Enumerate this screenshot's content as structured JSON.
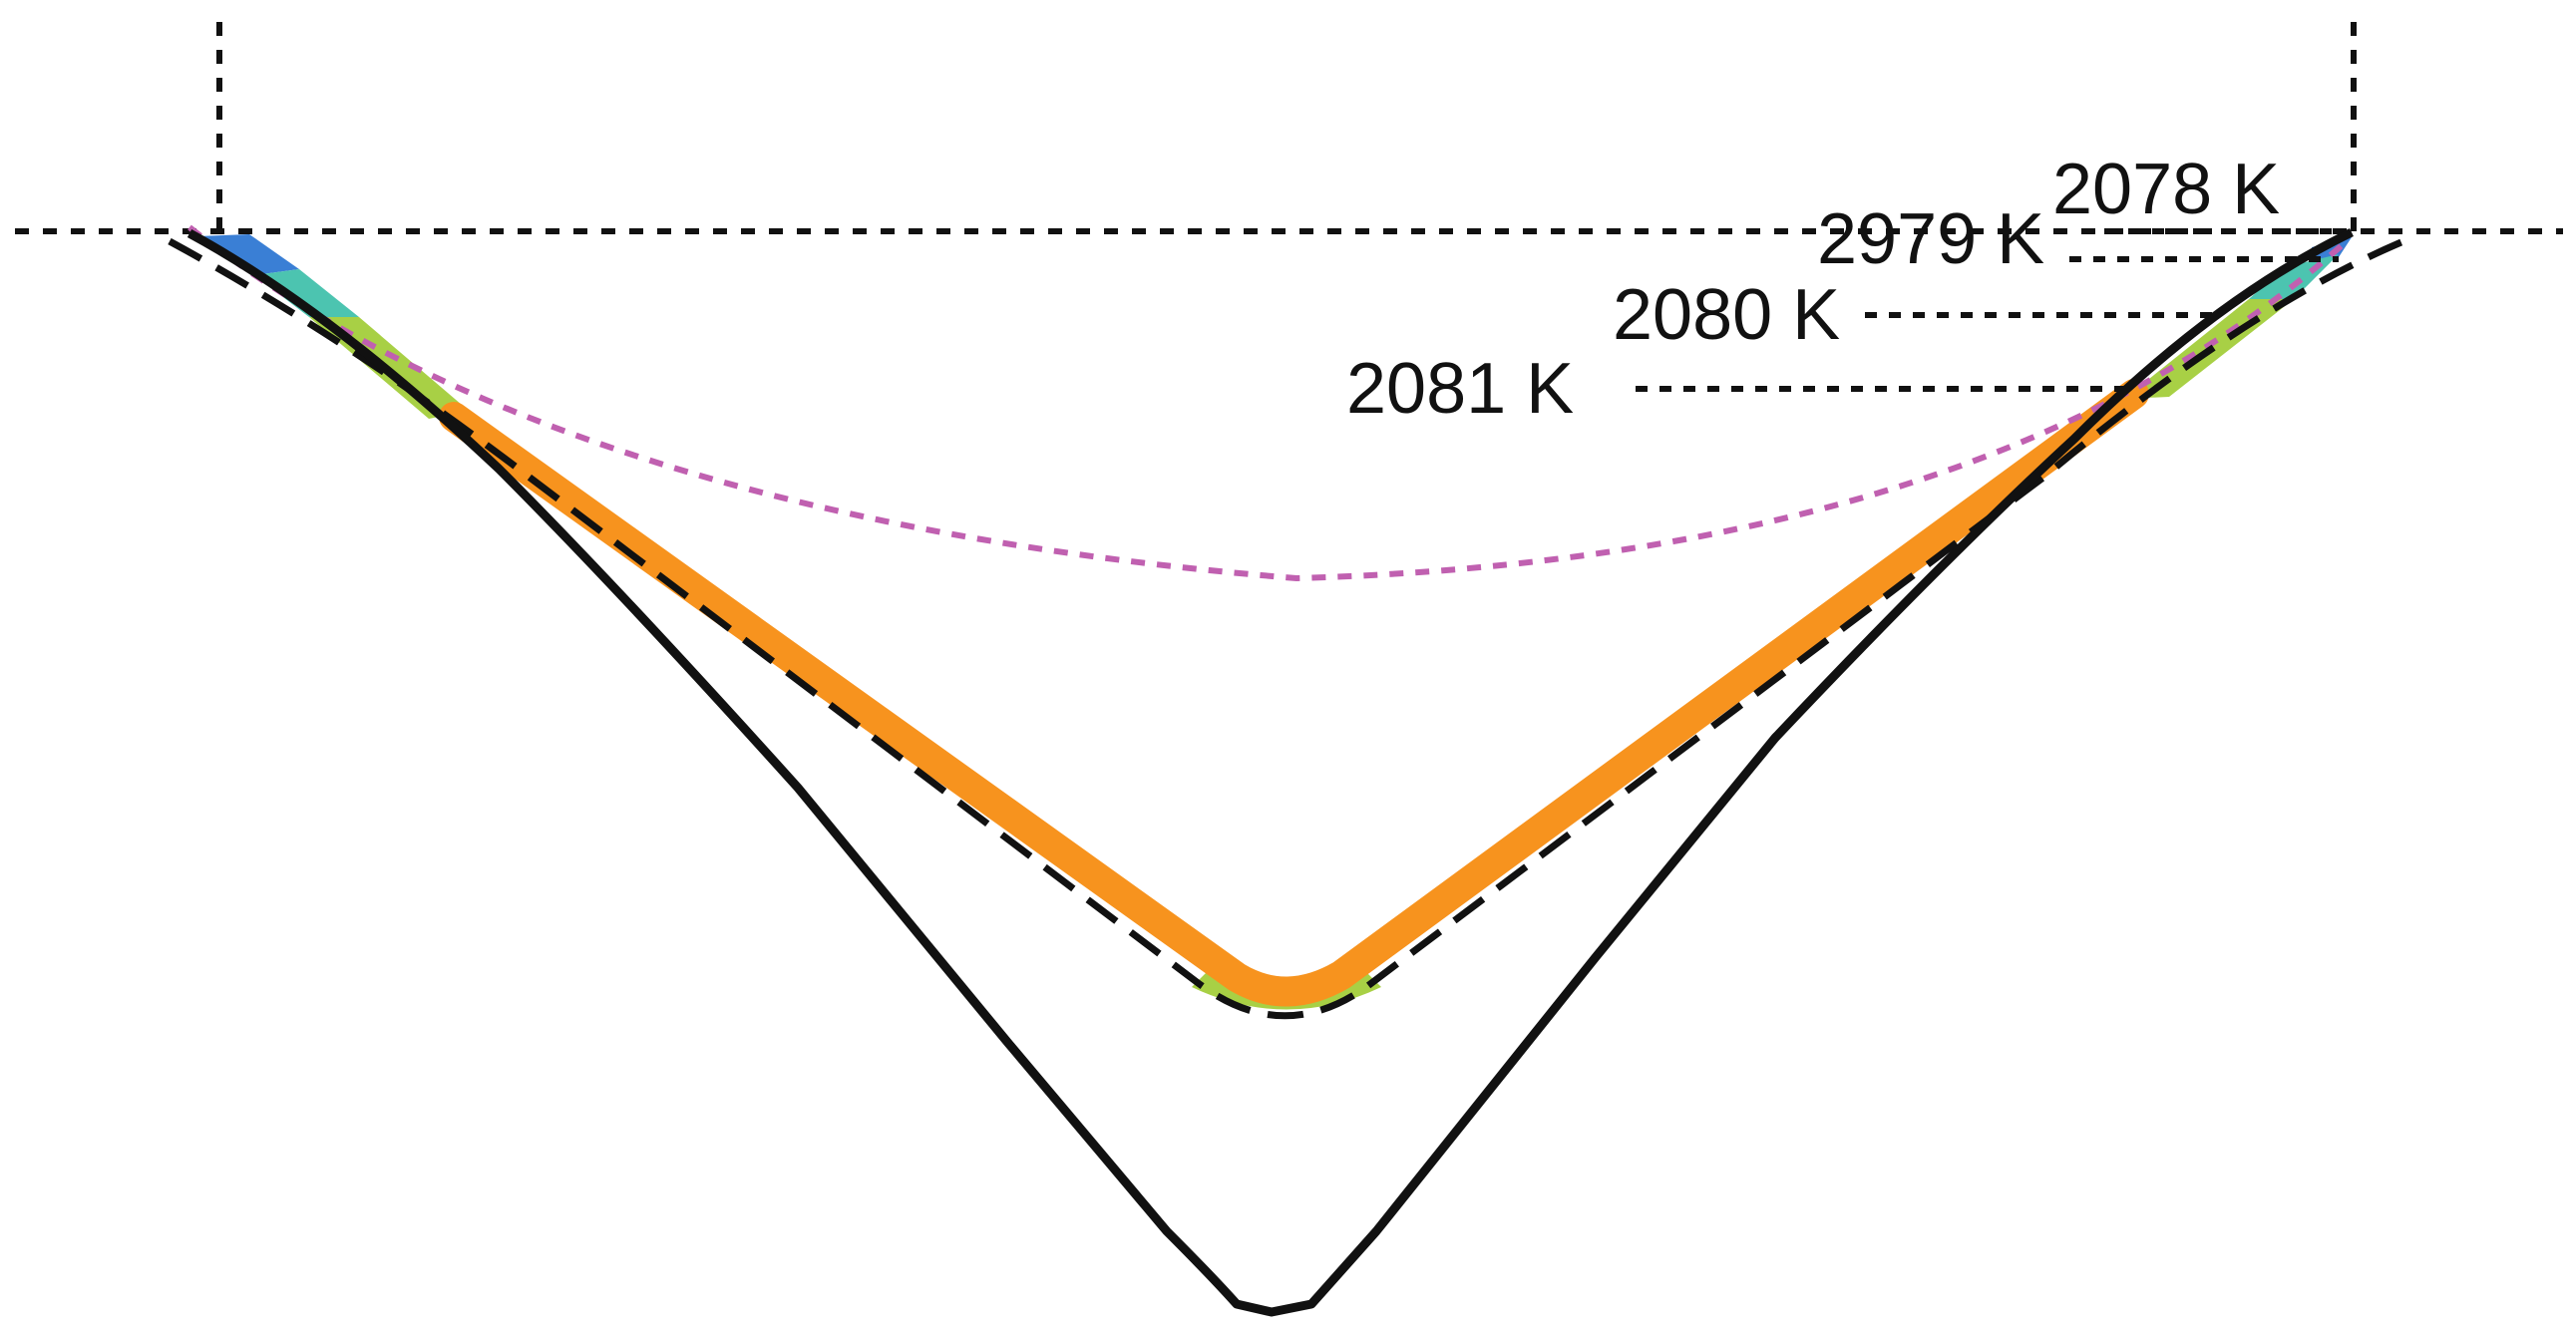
{
  "colors": {
    "melt_zone": "#f7931e",
    "mushy_zone": "#a8d045",
    "teal_zone": "#4cc4b0",
    "blue_zone": "#3a7fd5",
    "weld_pool_outline": "#111111",
    "reference_profile": "#c060b0"
  },
  "isotherms": [
    {
      "label": "2078 K"
    },
    {
      "label": "2979 K"
    },
    {
      "label": "2080 K"
    },
    {
      "label": "2081 K"
    }
  ]
}
